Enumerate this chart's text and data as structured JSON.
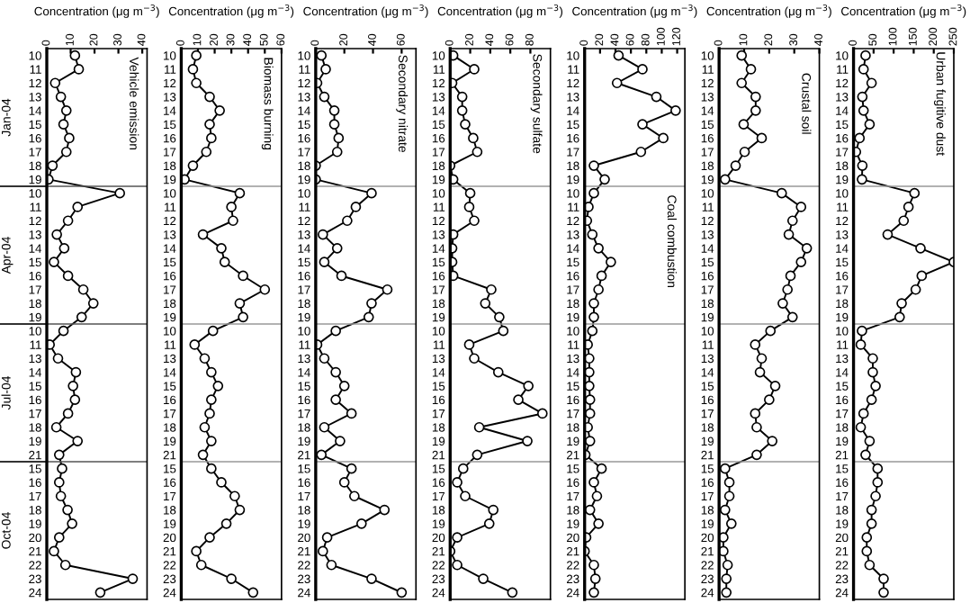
{
  "chart_data": [
    {
      "type": "line",
      "orientation": "horizontal",
      "title": "Vehicle emission",
      "xlabel": "Concentration (μg m$^{−3}$)",
      "annotations": [
        "Jan-04",
        "Apr-04",
        "Jul-04",
        "Oct-04"
      ],
      "marker": "circle",
      "xlim": [
        0,
        42
      ],
      "xticks": [
        0,
        10,
        20,
        30,
        40
      ],
      "categories": [
        "10",
        "11",
        "12",
        "13",
        "14",
        "15",
        "16",
        "17",
        "18",
        "19",
        "10",
        "11",
        "12",
        "13",
        "14",
        "15",
        "16",
        "17",
        "18",
        "19",
        "10",
        "11",
        "13",
        "14",
        "15",
        "16",
        "17",
        "18",
        "19",
        "21",
        "15",
        "16",
        "17",
        "18",
        "19",
        "20",
        "21",
        "22",
        "23",
        "24"
      ],
      "series": [
        {
          "color": "#000000",
          "values": [
            11.8,
            13.4,
            3.5,
            5.9,
            8.2,
            7,
            9.4,
            8.2,
            2.4,
            0.7,
            30.6,
            12.9,
            8.9,
            4.2,
            7.3,
            3,
            8.9,
            15.3,
            19.5,
            14.6,
            7,
            1.2,
            4.7,
            12.2,
            11,
            11.8,
            8.9,
            4,
            12.9,
            5.2,
            6.4,
            5.2,
            5.9,
            8.7,
            10.6,
            5.2,
            3,
            7.8,
            36,
            22.4
          ]
        }
      ]
    },
    {
      "type": "line",
      "orientation": "horizontal",
      "title": "Biomass burning",
      "xlabel": "Concentration (μg m$^{−3}$)",
      "marker": "circle",
      "xlim": [
        0,
        60
      ],
      "xticks": [
        0,
        10,
        20,
        30,
        40,
        50,
        60
      ],
      "categories": [
        "10",
        "11",
        "12",
        "13",
        "14",
        "15",
        "16",
        "17",
        "18",
        "19",
        "10",
        "11",
        "12",
        "13",
        "14",
        "15",
        "16",
        "17",
        "18",
        "19",
        "10",
        "11",
        "13",
        "14",
        "15",
        "16",
        "17",
        "18",
        "19",
        "21",
        "15",
        "16",
        "17",
        "18",
        "19",
        "20",
        "21",
        "22",
        "23",
        "24"
      ],
      "series": [
        {
          "color": "#000000",
          "values": [
            9,
            7,
            9,
            17,
            23,
            17,
            18,
            15,
            7,
            2,
            35,
            30,
            31,
            13,
            24,
            26,
            37,
            50,
            35,
            37,
            19,
            8,
            14,
            18,
            22,
            18,
            17,
            14,
            18,
            13,
            18,
            24,
            32,
            35,
            27,
            17,
            9,
            12,
            30,
            43
          ]
        }
      ]
    },
    {
      "type": "line",
      "orientation": "horizontal",
      "title": "Secondary nitrate",
      "xlabel": "Concentration (μg m$^{−3}$)",
      "marker": "circle",
      "xlim": [
        0,
        70
      ],
      "xticks": [
        0,
        20,
        40,
        60
      ],
      "categories": [
        "10",
        "11",
        "12",
        "13",
        "14",
        "15",
        "16",
        "17",
        "18",
        "19",
        "10",
        "11",
        "12",
        "13",
        "14",
        "15",
        "16",
        "17",
        "18",
        "19",
        "10",
        "11",
        "13",
        "14",
        "15",
        "16",
        "17",
        "18",
        "19",
        "21",
        "15",
        "16",
        "17",
        "18",
        "19",
        "20",
        "21",
        "22",
        "23",
        "24"
      ],
      "series": [
        {
          "color": "#000000",
          "values": [
            4,
            7,
            1,
            6,
            13,
            13,
            16,
            15,
            0,
            0,
            39,
            28,
            22,
            5,
            15,
            6,
            18,
            50,
            39,
            37,
            14,
            1,
            6,
            14,
            20,
            14,
            25,
            6,
            17,
            4,
            25,
            20,
            27,
            48,
            32,
            8,
            5,
            11,
            39,
            60
          ]
        }
      ]
    },
    {
      "type": "line",
      "orientation": "horizontal",
      "title": "Secondary sulfate",
      "xlabel": "Concentration (μg m$^{−3}$)",
      "marker": "circle",
      "xlim": [
        0,
        100
      ],
      "xticks": [
        0,
        20,
        40,
        60,
        80
      ],
      "categories": [
        "10",
        "11",
        "12",
        "13",
        "14",
        "15",
        "16",
        "17",
        "18",
        "19",
        "10",
        "11",
        "12",
        "13",
        "14",
        "15",
        "16",
        "17",
        "18",
        "19",
        "10",
        "11",
        "13",
        "14",
        "15",
        "16",
        "17",
        "18",
        "19",
        "21",
        "15",
        "16",
        "17",
        "18",
        "19",
        "20",
        "21",
        "22",
        "23",
        "24"
      ],
      "series": [
        {
          "color": "#000000",
          "values": [
            3,
            24,
            2,
            12,
            12,
            15,
            23,
            27,
            0,
            3,
            20,
            19,
            24,
            3,
            2,
            2,
            3,
            41,
            35,
            49,
            53,
            19,
            24,
            48,
            78,
            68,
            92,
            29,
            77,
            27,
            13,
            7,
            15,
            43,
            39,
            7,
            0,
            7,
            33,
            62
          ]
        }
      ]
    },
    {
      "type": "line",
      "orientation": "horizontal",
      "title": "Coal combustion",
      "xlabel": "Concentration (μg m$^{−3}$)",
      "marker": "circle",
      "xlim": [
        0,
        130
      ],
      "xticks": [
        0,
        20,
        40,
        60,
        80,
        100,
        120
      ],
      "categories": [
        "10",
        "11",
        "12",
        "13",
        "14",
        "15",
        "16",
        "17",
        "18",
        "19",
        "10",
        "11",
        "12",
        "13",
        "14",
        "15",
        "16",
        "17",
        "18",
        "19",
        "10",
        "11",
        "13",
        "14",
        "15",
        "16",
        "17",
        "18",
        "19",
        "21",
        "15",
        "16",
        "17",
        "18",
        "19",
        "20",
        "21",
        "22",
        "23",
        "24"
      ],
      "series": [
        {
          "color": "#000000",
          "values": [
            44,
            75,
            42,
            93,
            118,
            75,
            102,
            73,
            12,
            26,
            12,
            5,
            3,
            10,
            18,
            34,
            22,
            18,
            12,
            12,
            10,
            4,
            6,
            6,
            6,
            7,
            7,
            4,
            7,
            1,
            22,
            12,
            16,
            7,
            18,
            2,
            0,
            12,
            14,
            12
          ]
        }
      ]
    },
    {
      "type": "line",
      "orientation": "horizontal",
      "title": "Crustal soil",
      "xlabel": "Concentration (μg m$^{−3}$)",
      "marker": "circle",
      "xlim": [
        0,
        40
      ],
      "xticks": [
        0,
        10,
        20,
        30,
        40
      ],
      "categories": [
        "10",
        "11",
        "12",
        "13",
        "14",
        "15",
        "16",
        "17",
        "18",
        "19",
        "10",
        "11",
        "12",
        "13",
        "14",
        "15",
        "16",
        "17",
        "18",
        "19",
        "10",
        "11",
        "13",
        "14",
        "15",
        "16",
        "17",
        "18",
        "19",
        "21",
        "15",
        "16",
        "17",
        "18",
        "19",
        "20",
        "21",
        "22",
        "23",
        "24"
      ],
      "series": [
        {
          "color": "#000000",
          "values": [
            9,
            12.7,
            9,
            14.6,
            14.6,
            9.8,
            17,
            10.2,
            6.6,
            2.4,
            25,
            32.7,
            29.3,
            27.8,
            35,
            32.7,
            28.5,
            27.3,
            25.4,
            29.3,
            20.5,
            14.4,
            17,
            16.3,
            22.4,
            20,
            14.4,
            15,
            21.2,
            15,
            2.4,
            4.1,
            4.1,
            2.4,
            4.9,
            1.7,
            1.7,
            3.4,
            2.9,
            2.9
          ]
        }
      ]
    },
    {
      "type": "line",
      "orientation": "horizontal",
      "title": "Urban fugitive dust",
      "xlabel": "Concentration (μg m$^{−3}$)",
      "marker": "circle",
      "xlim": [
        0,
        250
      ],
      "xticks": [
        0,
        50,
        100,
        150,
        200,
        250
      ],
      "categories": [
        "10",
        "11",
        "12",
        "13",
        "14",
        "15",
        "16",
        "17",
        "18",
        "19",
        "10",
        "11",
        "12",
        "13",
        "14",
        "15",
        "16",
        "17",
        "18",
        "19",
        "10",
        "11",
        "13",
        "14",
        "15",
        "16",
        "17",
        "18",
        "19",
        "21",
        "15",
        "16",
        "17",
        "18",
        "19",
        "20",
        "21",
        "22",
        "23",
        "24"
      ],
      "series": [
        {
          "color": "#000000",
          "values": [
            30,
            25,
            45,
            22,
            25,
            40,
            15,
            6,
            22,
            21,
            152,
            137,
            125,
            85,
            167,
            250,
            170,
            155,
            120,
            115,
            21,
            18,
            48,
            48,
            55,
            45,
            25,
            18,
            40,
            30,
            60,
            60,
            55,
            45,
            45,
            33,
            33,
            40,
            75,
            75
          ]
        }
      ]
    }
  ]
}
